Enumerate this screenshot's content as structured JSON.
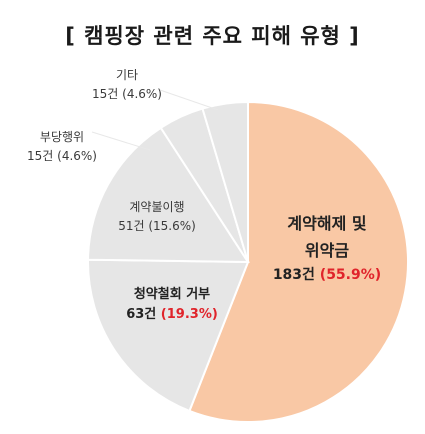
{
  "title": "[ 캠핑장 관련 주요 피해 유형 ]",
  "colors": {
    "highlight_slice": "#f9c8a5",
    "other_slice": "#e6e6e6",
    "slice_border": "#ffffff",
    "percent_highlight": "#e0242b"
  },
  "chart_data": {
    "type": "pie",
    "title": "[ 캠핑장 관련 주요 피해 유형 ]",
    "start_angle_deg": 0,
    "direction": "clockwise",
    "slices": [
      {
        "label": "계약해제 및 위약금",
        "label_line1": "계약해제 및",
        "label_line2": "위약금",
        "count": 183,
        "count_text": "183건",
        "percent": 55.9,
        "percent_text": "(55.9%)"
      },
      {
        "label": "청약철회 거부",
        "label_line1": "청약철회 거부",
        "count": 63,
        "count_text": "63건",
        "percent": 19.3,
        "percent_text": "(19.3%)"
      },
      {
        "label": "계약불이행",
        "label_line1": "계약불이행",
        "count": 51,
        "count_text": "51건",
        "percent": 15.6,
        "percent_text": "(15.6%)"
      },
      {
        "label": "부당행위",
        "label_line1": "부당행위",
        "count": 15,
        "count_text": "15건",
        "percent": 4.6,
        "percent_text": "(4.6%)"
      },
      {
        "label": "기타",
        "label_line1": "기타",
        "count": 15,
        "count_text": "15건",
        "percent": 4.6,
        "percent_text": "(4.6%)"
      }
    ]
  }
}
